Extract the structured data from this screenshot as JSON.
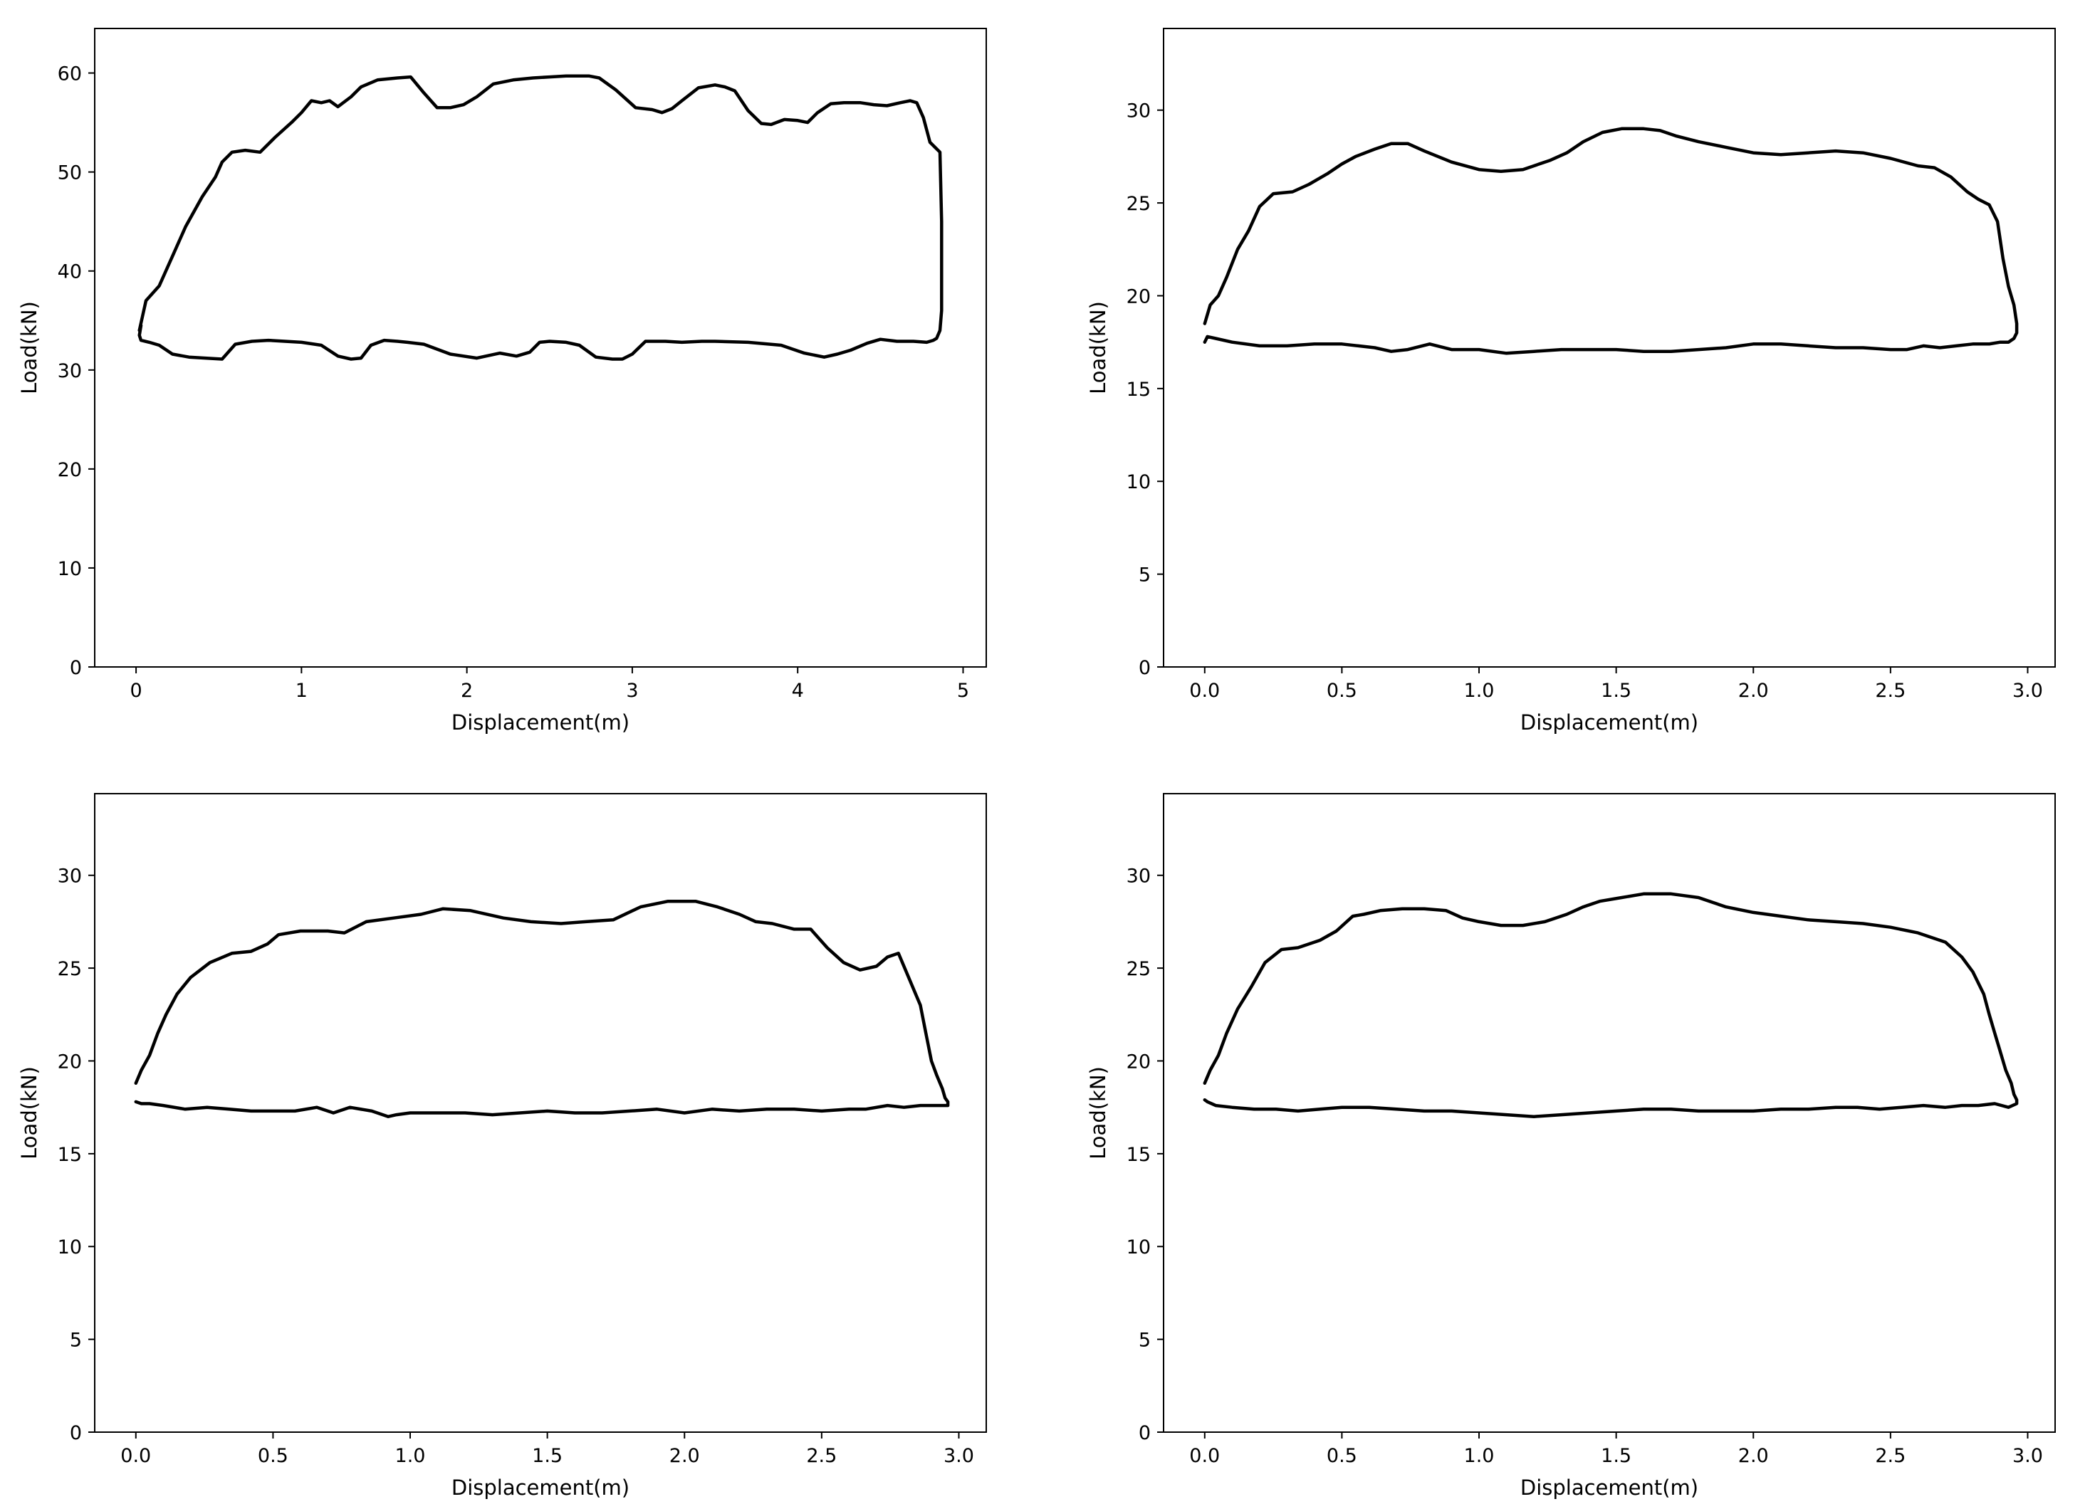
{
  "chart_data": [
    {
      "type": "line",
      "title": "",
      "xlabel": "Displacement(m)",
      "ylabel": "Load(kN)",
      "xlim": [
        -0.25,
        5.14
      ],
      "ylim": [
        0,
        64.5
      ],
      "xticks": [
        0,
        1,
        2,
        3,
        4,
        5
      ],
      "xtick_labels": [
        "0",
        "1",
        "2",
        "3",
        "4",
        "5"
      ],
      "yticks": [
        0,
        10,
        20,
        30,
        40,
        50,
        60
      ],
      "ytick_labels": [
        "0",
        "10",
        "20",
        "30",
        "40",
        "50",
        "60"
      ],
      "grid": false,
      "legend": null,
      "series": [
        {
          "color": "#000000",
          "x": [
            0.02,
            0.06,
            0.14,
            0.22,
            0.3,
            0.4,
            0.48,
            0.52,
            0.58,
            0.66,
            0.75,
            0.84,
            0.94,
            1.0,
            1.06,
            1.12,
            1.17,
            1.22,
            1.3,
            1.36,
            1.46,
            1.58,
            1.66,
            1.74,
            1.82,
            1.9,
            1.98,
            2.06,
            2.16,
            2.28,
            2.4,
            2.5,
            2.6,
            2.74,
            2.8,
            2.9,
            3.02,
            3.12,
            3.18,
            3.24,
            3.3,
            3.4,
            3.5,
            3.56,
            3.62,
            3.7,
            3.78,
            3.84,
            3.92,
            4.0,
            4.06,
            4.12,
            4.2,
            4.28,
            4.38,
            4.46,
            4.54,
            4.62,
            4.68,
            4.72,
            4.76,
            4.8,
            4.86,
            4.87,
            4.87,
            4.87,
            4.86,
            4.84,
            4.82,
            4.78,
            4.7,
            4.6,
            4.5,
            4.42,
            4.32,
            4.24,
            4.16,
            4.04,
            3.9,
            3.7,
            3.5,
            3.42,
            3.3,
            3.2,
            3.08,
            3.0,
            2.94,
            2.88,
            2.78,
            2.68,
            2.6,
            2.5,
            2.44,
            2.38,
            2.3,
            2.2,
            2.06,
            1.9,
            1.74,
            1.64,
            1.58,
            1.5,
            1.42,
            1.36,
            1.3,
            1.22,
            1.12,
            1.0,
            0.9,
            0.8,
            0.7,
            0.6,
            0.52,
            0.42,
            0.32,
            0.22,
            0.14,
            0.08,
            0.03,
            0.02,
            0.03
          ],
          "y": [
            34.0,
            37.0,
            38.5,
            41.5,
            44.5,
            47.5,
            49.5,
            51.0,
            52.0,
            52.2,
            52.0,
            53.5,
            55.0,
            56.0,
            57.2,
            57.0,
            57.2,
            56.6,
            57.6,
            58.6,
            59.3,
            59.5,
            59.6,
            58.0,
            56.5,
            56.5,
            56.8,
            57.6,
            58.9,
            59.3,
            59.5,
            59.6,
            59.7,
            59.7,
            59.5,
            58.3,
            56.5,
            56.3,
            56.0,
            56.4,
            57.2,
            58.5,
            58.8,
            58.6,
            58.2,
            56.2,
            54.9,
            54.8,
            55.3,
            55.2,
            55.0,
            56.0,
            56.9,
            57.0,
            57.0,
            56.8,
            56.7,
            57.0,
            57.2,
            57.0,
            55.5,
            53.0,
            52.0,
            45.0,
            40.0,
            36.0,
            34.0,
            33.2,
            33.0,
            32.8,
            32.9,
            32.9,
            33.1,
            32.7,
            32.0,
            31.6,
            31.3,
            31.7,
            32.5,
            32.8,
            32.9,
            32.9,
            32.8,
            32.9,
            32.9,
            31.6,
            31.1,
            31.1,
            31.3,
            32.5,
            32.8,
            32.9,
            32.8,
            31.8,
            31.4,
            31.7,
            31.2,
            31.6,
            32.6,
            32.8,
            32.9,
            33.0,
            32.5,
            31.2,
            31.1,
            31.4,
            32.5,
            32.8,
            32.9,
            33.0,
            32.9,
            32.6,
            31.1,
            31.2,
            31.3,
            31.6,
            32.5,
            32.8,
            33.0,
            33.5,
            34.5
          ]
        }
      ]
    },
    {
      "type": "line",
      "title": "",
      "xlabel": "Displacement(m)",
      "ylabel": "Load(kN)",
      "xlim": [
        -0.15,
        3.1
      ],
      "ylim": [
        0,
        34.4
      ],
      "xticks": [
        0.0,
        0.5,
        1.0,
        1.5,
        2.0,
        2.5,
        3.0
      ],
      "xtick_labels": [
        "0.0",
        "0.5",
        "1.0",
        "1.5",
        "2.0",
        "2.5",
        "3.0"
      ],
      "yticks": [
        0,
        5,
        10,
        15,
        20,
        25,
        30
      ],
      "ytick_labels": [
        "0",
        "5",
        "10",
        "15",
        "20",
        "25",
        "30"
      ],
      "grid": false,
      "legend": null,
      "series": [
        {
          "color": "#000000",
          "x": [
            0.0,
            0.02,
            0.05,
            0.08,
            0.12,
            0.16,
            0.2,
            0.25,
            0.32,
            0.38,
            0.45,
            0.5,
            0.55,
            0.62,
            0.68,
            0.74,
            0.8,
            0.9,
            1.0,
            1.08,
            1.16,
            1.26,
            1.32,
            1.38,
            1.45,
            1.52,
            1.6,
            1.66,
            1.72,
            1.8,
            1.9,
            2.0,
            2.1,
            2.2,
            2.3,
            2.4,
            2.5,
            2.6,
            2.66,
            2.72,
            2.78,
            2.82,
            2.86,
            2.89,
            2.91,
            2.93,
            2.95,
            2.96,
            2.96,
            2.95,
            2.93,
            2.9,
            2.86,
            2.8,
            2.74,
            2.68,
            2.62,
            2.56,
            2.5,
            2.4,
            2.3,
            2.2,
            2.1,
            2.0,
            1.9,
            1.8,
            1.7,
            1.6,
            1.5,
            1.4,
            1.3,
            1.2,
            1.1,
            1.0,
            0.9,
            0.82,
            0.74,
            0.68,
            0.62,
            0.56,
            0.5,
            0.4,
            0.3,
            0.2,
            0.1,
            0.04,
            0.01,
            0.0
          ],
          "y": [
            18.5,
            19.5,
            20.0,
            21.0,
            22.5,
            23.5,
            24.8,
            25.5,
            25.6,
            26.0,
            26.6,
            27.1,
            27.5,
            27.9,
            28.2,
            28.2,
            27.8,
            27.2,
            26.8,
            26.7,
            26.8,
            27.3,
            27.7,
            28.3,
            28.8,
            29.0,
            29.0,
            28.9,
            28.6,
            28.3,
            28.0,
            27.7,
            27.6,
            27.7,
            27.8,
            27.7,
            27.4,
            27.0,
            26.9,
            26.4,
            25.6,
            25.2,
            24.9,
            24.0,
            22.0,
            20.5,
            19.5,
            18.5,
            18.0,
            17.7,
            17.5,
            17.5,
            17.4,
            17.4,
            17.3,
            17.2,
            17.3,
            17.1,
            17.1,
            17.2,
            17.2,
            17.3,
            17.4,
            17.4,
            17.2,
            17.1,
            17.0,
            17.0,
            17.1,
            17.1,
            17.1,
            17.0,
            16.9,
            17.1,
            17.1,
            17.4,
            17.1,
            17.0,
            17.2,
            17.3,
            17.4,
            17.4,
            17.3,
            17.3,
            17.5,
            17.7,
            17.8,
            17.5
          ]
        }
      ]
    },
    {
      "type": "line",
      "title": "",
      "xlabel": "Displacement(m)",
      "ylabel": "Load(kN)",
      "xlim": [
        -0.15,
        3.1
      ],
      "ylim": [
        0,
        34.4
      ],
      "xticks": [
        0.0,
        0.5,
        1.0,
        1.5,
        2.0,
        2.5,
        3.0
      ],
      "xtick_labels": [
        "0.0",
        "0.5",
        "1.0",
        "1.5",
        "2.0",
        "2.5",
        "3.0"
      ],
      "yticks": [
        0,
        5,
        10,
        15,
        20,
        25,
        30
      ],
      "ytick_labels": [
        "0",
        "5",
        "10",
        "15",
        "20",
        "25",
        "30"
      ],
      "grid": false,
      "legend": null,
      "series": [
        {
          "color": "#000000",
          "x": [
            0.0,
            0.02,
            0.05,
            0.08,
            0.11,
            0.15,
            0.2,
            0.27,
            0.35,
            0.42,
            0.48,
            0.52,
            0.6,
            0.7,
            0.76,
            0.84,
            0.94,
            1.04,
            1.12,
            1.22,
            1.34,
            1.44,
            1.55,
            1.64,
            1.74,
            1.84,
            1.94,
            2.04,
            2.12,
            2.2,
            2.26,
            2.32,
            2.4,
            2.46,
            2.52,
            2.58,
            2.64,
            2.7,
            2.74,
            2.78,
            2.82,
            2.86,
            2.88,
            2.9,
            2.92,
            2.94,
            2.95,
            2.96,
            2.96,
            2.94,
            2.9,
            2.86,
            2.8,
            2.74,
            2.66,
            2.6,
            2.5,
            2.4,
            2.3,
            2.2,
            2.1,
            2.0,
            1.9,
            1.8,
            1.7,
            1.6,
            1.5,
            1.4,
            1.3,
            1.2,
            1.1,
            1.0,
            0.95,
            0.92,
            0.86,
            0.78,
            0.72,
            0.66,
            0.58,
            0.5,
            0.42,
            0.34,
            0.26,
            0.18,
            0.1,
            0.05,
            0.02,
            0.0
          ],
          "y": [
            18.8,
            19.5,
            20.3,
            21.5,
            22.5,
            23.6,
            24.5,
            25.3,
            25.8,
            25.9,
            26.3,
            26.8,
            27.0,
            27.0,
            26.9,
            27.5,
            27.7,
            27.9,
            28.2,
            28.1,
            27.7,
            27.5,
            27.4,
            27.5,
            27.6,
            28.3,
            28.6,
            28.6,
            28.3,
            27.9,
            27.5,
            27.4,
            27.1,
            27.1,
            26.1,
            25.3,
            24.9,
            25.1,
            25.6,
            25.8,
            24.4,
            23.0,
            21.5,
            20.0,
            19.2,
            18.5,
            18.0,
            17.8,
            17.6,
            17.6,
            17.6,
            17.6,
            17.5,
            17.6,
            17.4,
            17.4,
            17.3,
            17.4,
            17.4,
            17.3,
            17.4,
            17.2,
            17.4,
            17.3,
            17.2,
            17.2,
            17.3,
            17.2,
            17.1,
            17.2,
            17.2,
            17.2,
            17.1,
            17.0,
            17.3,
            17.5,
            17.2,
            17.5,
            17.3,
            17.3,
            17.3,
            17.4,
            17.5,
            17.4,
            17.6,
            17.7,
            17.7,
            17.8
          ]
        }
      ]
    },
    {
      "type": "line",
      "title": "",
      "xlabel": "Displacement(m)",
      "ylabel": "Load(kN)",
      "xlim": [
        -0.15,
        3.1
      ],
      "ylim": [
        0,
        34.4
      ],
      "xticks": [
        0.0,
        0.5,
        1.0,
        1.5,
        2.0,
        2.5,
        3.0
      ],
      "xtick_labels": [
        "0.0",
        "0.5",
        "1.0",
        "1.5",
        "2.0",
        "2.5",
        "3.0"
      ],
      "yticks": [
        0,
        5,
        10,
        15,
        20,
        25,
        30
      ],
      "ytick_labels": [
        "0",
        "5",
        "10",
        "15",
        "20",
        "25",
        "30"
      ],
      "grid": false,
      "legend": null,
      "series": [
        {
          "color": "#000000",
          "x": [
            0.0,
            0.02,
            0.05,
            0.08,
            0.12,
            0.17,
            0.22,
            0.28,
            0.34,
            0.42,
            0.48,
            0.54,
            0.58,
            0.64,
            0.72,
            0.8,
            0.88,
            0.94,
            1.0,
            1.08,
            1.16,
            1.24,
            1.32,
            1.38,
            1.44,
            1.52,
            1.6,
            1.7,
            1.8,
            1.9,
            2.0,
            2.1,
            2.2,
            2.3,
            2.4,
            2.5,
            2.6,
            2.7,
            2.76,
            2.8,
            2.84,
            2.86,
            2.88,
            2.9,
            2.92,
            2.94,
            2.95,
            2.96,
            2.96,
            2.93,
            2.88,
            2.82,
            2.76,
            2.7,
            2.62,
            2.54,
            2.46,
            2.38,
            2.3,
            2.2,
            2.1,
            2.0,
            1.9,
            1.8,
            1.7,
            1.6,
            1.5,
            1.4,
            1.3,
            1.2,
            1.1,
            1.0,
            0.9,
            0.8,
            0.7,
            0.6,
            0.5,
            0.42,
            0.34,
            0.26,
            0.18,
            0.1,
            0.04,
            0.01,
            0.0
          ],
          "y": [
            18.8,
            19.5,
            20.3,
            21.5,
            22.8,
            24.0,
            25.3,
            26.0,
            26.1,
            26.5,
            27.0,
            27.8,
            27.9,
            28.1,
            28.2,
            28.2,
            28.1,
            27.7,
            27.5,
            27.3,
            27.3,
            27.5,
            27.9,
            28.3,
            28.6,
            28.8,
            29.0,
            29.0,
            28.8,
            28.3,
            28.0,
            27.8,
            27.6,
            27.5,
            27.4,
            27.2,
            26.9,
            26.4,
            25.6,
            24.8,
            23.6,
            22.5,
            21.5,
            20.5,
            19.5,
            18.8,
            18.2,
            17.9,
            17.7,
            17.5,
            17.7,
            17.6,
            17.6,
            17.5,
            17.6,
            17.5,
            17.4,
            17.5,
            17.5,
            17.4,
            17.4,
            17.3,
            17.3,
            17.3,
            17.4,
            17.4,
            17.3,
            17.2,
            17.1,
            17.0,
            17.1,
            17.2,
            17.3,
            17.3,
            17.4,
            17.5,
            17.5,
            17.4,
            17.3,
            17.4,
            17.4,
            17.5,
            17.6,
            17.8,
            17.9
          ]
        }
      ]
    }
  ]
}
